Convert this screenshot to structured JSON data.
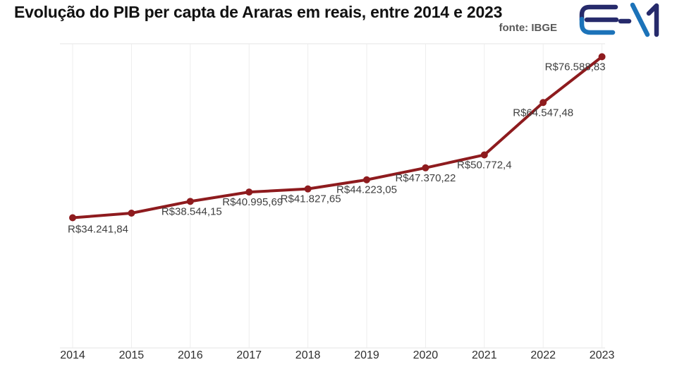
{
  "header": {
    "title": "Evolução do PIB per capta de Araras em reais, entre 2014 e 2023",
    "source": "fonte: IBGE"
  },
  "logo": {
    "navy": "#262a6b",
    "blue": "#1c73b9"
  },
  "colors": {
    "line": "#8e1b1e",
    "point": "#8e1b1e",
    "grid": "#ededed",
    "border": "#e4e4e4",
    "data_label": "#3f3f3f",
    "tick_label": "#2e2e2e",
    "title": "#111111",
    "source": "#595959",
    "background": "#ffffff"
  },
  "chart_data": {
    "type": "line",
    "title": "Evolução do PIB per capta de Araras em reais, entre 2014 e 2023",
    "subtitle": "fonte: IBGE",
    "x": [
      "2014",
      "2015",
      "2016",
      "2017",
      "2018",
      "2019",
      "2020",
      "2021",
      "2022",
      "2023"
    ],
    "values": [
      34241.84,
      35450,
      38544.15,
      40995.69,
      41827.65,
      44223.05,
      47370.22,
      50772.4,
      64547.48,
      76588.83
    ],
    "point_labels": [
      "R$34.241,84",
      "",
      "R$38.544,15",
      "R$40.995,69",
      "R$41.827,65",
      "R$44.223,05",
      "R$47.370,22",
      "R$50.772,4",
      "R$64.547,48",
      "R$76.588,83"
    ],
    "xlabel": "",
    "ylabel": "",
    "ylim": [
      0,
      80000
    ],
    "grid": "vertical-only",
    "legend": "none"
  }
}
